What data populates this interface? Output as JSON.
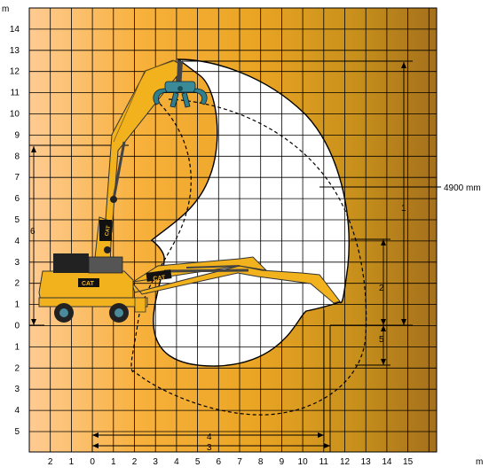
{
  "units": {
    "top": "m",
    "bottom": "m"
  },
  "y_labels": [
    "14",
    "13",
    "12",
    "11",
    "10",
    "9",
    "8",
    "7",
    "6",
    "5",
    "4",
    "3",
    "2",
    "1",
    "0",
    "1",
    "2",
    "3",
    "4",
    "5"
  ],
  "x_labels": [
    "2",
    "1",
    "0",
    "1",
    "2",
    "3",
    "4",
    "5",
    "6",
    "7",
    "8",
    "9",
    "10",
    "11",
    "12",
    "13",
    "14",
    "15"
  ],
  "annotations": {
    "callout": "4900 mm",
    "dim_1": "1",
    "dim_2": "2",
    "dim_3": "3",
    "dim_4": "4",
    "dim_5": "5",
    "dim_6": "6"
  },
  "colors": {
    "gradient": [
      "#ffc98f",
      "#f6ac2b",
      "#eaa322",
      "#c48e16",
      "#a26b18"
    ],
    "machine": "#f2b21e",
    "grapple": "#3a8a98",
    "envelope": "#ffffff"
  },
  "brand": {
    "cab": "CAT",
    "boom": "CAT",
    "body": "CAT"
  }
}
